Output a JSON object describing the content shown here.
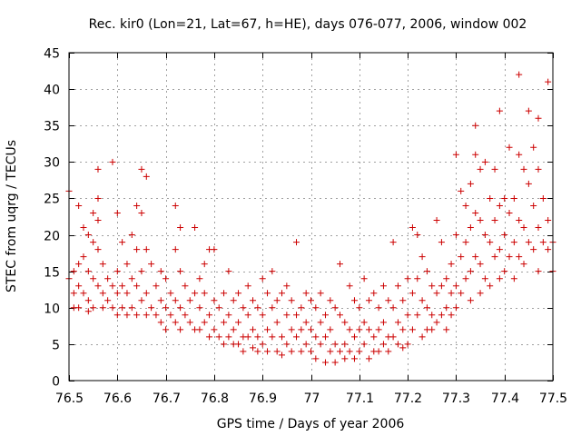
{
  "chart_data": {
    "type": "scatter",
    "title": "Rec. kir0 (Lon=21, Lat=67, h=HE), days 076-077, 2006, window 002",
    "xlabel": "GPS time / Days of year 2006",
    "ylabel": "STEC from uqrg / TECUs",
    "xlim": [
      76.5,
      77.5
    ],
    "ylim": [
      0,
      45
    ],
    "xticks": [
      76.5,
      76.6,
      76.7,
      76.8,
      76.9,
      77,
      77.1,
      77.2,
      77.3,
      77.4,
      77.5
    ],
    "xtick_labels": [
      "76.5",
      "76.6",
      "76.7",
      "76.8",
      "76.9",
      "77",
      "77.1",
      "77.2",
      "77.3",
      "77.4",
      "77.5"
    ],
    "yticks": [
      0,
      5,
      10,
      15,
      20,
      25,
      30,
      35,
      40,
      45
    ],
    "ytick_labels": [
      "0",
      "5",
      "10",
      "15",
      "20",
      "25",
      "30",
      "35",
      "40",
      "45"
    ],
    "grid": true,
    "marker": "plus",
    "color": "#cc0000",
    "points": [
      [
        76.5,
        26
      ],
      [
        76.5,
        14
      ],
      [
        76.51,
        15
      ],
      [
        76.51,
        12
      ],
      [
        76.51,
        10
      ],
      [
        76.52,
        24
      ],
      [
        76.52,
        16
      ],
      [
        76.52,
        13
      ],
      [
        76.52,
        10
      ],
      [
        76.53,
        21
      ],
      [
        76.53,
        17
      ],
      [
        76.53,
        12
      ],
      [
        76.54,
        20
      ],
      [
        76.54,
        15
      ],
      [
        76.54,
        11
      ],
      [
        76.54,
        9.5
      ],
      [
        76.55,
        23
      ],
      [
        76.55,
        19
      ],
      [
        76.55,
        14
      ],
      [
        76.55,
        10
      ],
      [
        76.56,
        25
      ],
      [
        76.56,
        22
      ],
      [
        76.56,
        18
      ],
      [
        76.56,
        13
      ],
      [
        76.56,
        29
      ],
      [
        76.57,
        16
      ],
      [
        76.57,
        12
      ],
      [
        76.57,
        10
      ],
      [
        76.58,
        14
      ],
      [
        76.58,
        11
      ],
      [
        76.59,
        30
      ],
      [
        76.59,
        13
      ],
      [
        76.59,
        10
      ],
      [
        76.6,
        23
      ],
      [
        76.6,
        15
      ],
      [
        76.6,
        12
      ],
      [
        76.6,
        9
      ],
      [
        76.61,
        19
      ],
      [
        76.61,
        13
      ],
      [
        76.61,
        10
      ],
      [
        76.62,
        16
      ],
      [
        76.62,
        12
      ],
      [
        76.62,
        9
      ],
      [
        76.63,
        20
      ],
      [
        76.63,
        14
      ],
      [
        76.63,
        10
      ],
      [
        76.64,
        24
      ],
      [
        76.64,
        18
      ],
      [
        76.64,
        13
      ],
      [
        76.64,
        9
      ],
      [
        76.65,
        29
      ],
      [
        76.65,
        23
      ],
      [
        76.65,
        15
      ],
      [
        76.65,
        11
      ],
      [
        76.66,
        28
      ],
      [
        76.66,
        18
      ],
      [
        76.66,
        12
      ],
      [
        76.66,
        9
      ],
      [
        76.67,
        16
      ],
      [
        76.67,
        10
      ],
      [
        76.68,
        13
      ],
      [
        76.68,
        9
      ],
      [
        76.69,
        15
      ],
      [
        76.69,
        11
      ],
      [
        76.69,
        8
      ],
      [
        76.7,
        14
      ],
      [
        76.7,
        10
      ],
      [
        76.7,
        7
      ],
      [
        76.71,
        12
      ],
      [
        76.71,
        9
      ],
      [
        76.72,
        24
      ],
      [
        76.72,
        18
      ],
      [
        76.72,
        11
      ],
      [
        76.72,
        8
      ],
      [
        76.73,
        21
      ],
      [
        76.73,
        15
      ],
      [
        76.73,
        10
      ],
      [
        76.73,
        7
      ],
      [
        76.74,
        13
      ],
      [
        76.74,
        9
      ],
      [
        76.75,
        11
      ],
      [
        76.75,
        8
      ],
      [
        76.76,
        21
      ],
      [
        76.76,
        12
      ],
      [
        76.76,
        7
      ],
      [
        76.77,
        14
      ],
      [
        76.77,
        10
      ],
      [
        76.77,
        7
      ],
      [
        76.78,
        16
      ],
      [
        76.78,
        12
      ],
      [
        76.78,
        8
      ],
      [
        76.79,
        18
      ],
      [
        76.79,
        9
      ],
      [
        76.79,
        6
      ],
      [
        76.8,
        18
      ],
      [
        76.8,
        11
      ],
      [
        76.8,
        7
      ],
      [
        76.81,
        10
      ],
      [
        76.81,
        6
      ],
      [
        76.82,
        12
      ],
      [
        76.82,
        8
      ],
      [
        76.82,
        5
      ],
      [
        76.83,
        15
      ],
      [
        76.83,
        9
      ],
      [
        76.83,
        6
      ],
      [
        76.84,
        11
      ],
      [
        76.84,
        7
      ],
      [
        76.84,
        5
      ],
      [
        76.85,
        12
      ],
      [
        76.85,
        8
      ],
      [
        76.85,
        5
      ],
      [
        76.86,
        10
      ],
      [
        76.86,
        6
      ],
      [
        76.86,
        4
      ],
      [
        76.87,
        13
      ],
      [
        76.87,
        9
      ],
      [
        76.87,
        6
      ],
      [
        76.88,
        11
      ],
      [
        76.88,
        7
      ],
      [
        76.88,
        4.5
      ],
      [
        76.89,
        10
      ],
      [
        76.89,
        6
      ],
      [
        76.89,
        4
      ],
      [
        76.9,
        14
      ],
      [
        76.9,
        9
      ],
      [
        76.9,
        5
      ],
      [
        76.91,
        12
      ],
      [
        76.91,
        7
      ],
      [
        76.91,
        4
      ],
      [
        76.92,
        15
      ],
      [
        76.92,
        10
      ],
      [
        76.92,
        6
      ],
      [
        76.93,
        11
      ],
      [
        76.93,
        8
      ],
      [
        76.93,
        4
      ],
      [
        76.94,
        12
      ],
      [
        76.94,
        6
      ],
      [
        76.94,
        3.5
      ],
      [
        76.95,
        13
      ],
      [
        76.95,
        9
      ],
      [
        76.95,
        5
      ],
      [
        76.96,
        11
      ],
      [
        76.96,
        7
      ],
      [
        76.96,
        4
      ],
      [
        76.97,
        19
      ],
      [
        76.97,
        9
      ],
      [
        76.97,
        6
      ],
      [
        76.98,
        10
      ],
      [
        76.98,
        7
      ],
      [
        76.98,
        4
      ],
      [
        76.99,
        12
      ],
      [
        76.99,
        8
      ],
      [
        76.99,
        5
      ],
      [
        77,
        11
      ],
      [
        77,
        7
      ],
      [
        77,
        4
      ],
      [
        77.01,
        10
      ],
      [
        77.01,
        6
      ],
      [
        77.01,
        3
      ],
      [
        77.02,
        12
      ],
      [
        77.02,
        8
      ],
      [
        77.02,
        5
      ],
      [
        77.03,
        9
      ],
      [
        77.03,
        6
      ],
      [
        77.03,
        2.5
      ],
      [
        77.04,
        11
      ],
      [
        77.04,
        7
      ],
      [
        77.04,
        4
      ],
      [
        77.05,
        10
      ],
      [
        77.05,
        5
      ],
      [
        77.05,
        2.5
      ],
      [
        77.06,
        16
      ],
      [
        77.06,
        9
      ],
      [
        77.06,
        4
      ],
      [
        77.07,
        8
      ],
      [
        77.07,
        5
      ],
      [
        77.07,
        3
      ],
      [
        77.08,
        13
      ],
      [
        77.08,
        7
      ],
      [
        77.08,
        4
      ],
      [
        77.09,
        11
      ],
      [
        77.09,
        6
      ],
      [
        77.09,
        3
      ],
      [
        77.1,
        10
      ],
      [
        77.1,
        7
      ],
      [
        77.1,
        4
      ],
      [
        77.11,
        14
      ],
      [
        77.11,
        8
      ],
      [
        77.11,
        5
      ],
      [
        77.12,
        11
      ],
      [
        77.12,
        7
      ],
      [
        77.12,
        3
      ],
      [
        77.13,
        12
      ],
      [
        77.13,
        6
      ],
      [
        77.13,
        4
      ],
      [
        77.14,
        10
      ],
      [
        77.14,
        7
      ],
      [
        77.14,
        4
      ],
      [
        77.15,
        13
      ],
      [
        77.15,
        8
      ],
      [
        77.15,
        5
      ],
      [
        77.16,
        11
      ],
      [
        77.16,
        6
      ],
      [
        77.16,
        4
      ],
      [
        77.17,
        19
      ],
      [
        77.17,
        10
      ],
      [
        77.17,
        6
      ],
      [
        77.18,
        13
      ],
      [
        77.18,
        8
      ],
      [
        77.18,
        5
      ],
      [
        77.19,
        11
      ],
      [
        77.19,
        7
      ],
      [
        77.19,
        4.5
      ],
      [
        77.2,
        14
      ],
      [
        77.2,
        9
      ],
      [
        77.2,
        5
      ],
      [
        77.21,
        21
      ],
      [
        77.21,
        12
      ],
      [
        77.21,
        7
      ],
      [
        77.22,
        20
      ],
      [
        77.22,
        14
      ],
      [
        77.22,
        9
      ],
      [
        77.23,
        17
      ],
      [
        77.23,
        11
      ],
      [
        77.23,
        6
      ],
      [
        77.24,
        15
      ],
      [
        77.24,
        10
      ],
      [
        77.24,
        7
      ],
      [
        77.25,
        13
      ],
      [
        77.25,
        9
      ],
      [
        77.25,
        7
      ],
      [
        77.26,
        22
      ],
      [
        77.26,
        12
      ],
      [
        77.26,
        8
      ],
      [
        77.27,
        19
      ],
      [
        77.27,
        13
      ],
      [
        77.27,
        9
      ],
      [
        77.28,
        14
      ],
      [
        77.28,
        10
      ],
      [
        77.28,
        7
      ],
      [
        77.29,
        16
      ],
      [
        77.29,
        12
      ],
      [
        77.29,
        9
      ],
      [
        77.3,
        31
      ],
      [
        77.3,
        20
      ],
      [
        77.3,
        13
      ],
      [
        77.3,
        10
      ],
      [
        77.31,
        26
      ],
      [
        77.31,
        17
      ],
      [
        77.31,
        12
      ],
      [
        77.32,
        24
      ],
      [
        77.32,
        19
      ],
      [
        77.32,
        14
      ],
      [
        77.33,
        27
      ],
      [
        77.33,
        21
      ],
      [
        77.33,
        15
      ],
      [
        77.33,
        11
      ],
      [
        77.34,
        35
      ],
      [
        77.34,
        31
      ],
      [
        77.34,
        23
      ],
      [
        77.34,
        17
      ],
      [
        77.35,
        29
      ],
      [
        77.35,
        22
      ],
      [
        77.35,
        16
      ],
      [
        77.35,
        12
      ],
      [
        77.36,
        30
      ],
      [
        77.36,
        20
      ],
      [
        77.36,
        14
      ],
      [
        77.37,
        25
      ],
      [
        77.37,
        19
      ],
      [
        77.37,
        13
      ],
      [
        77.38,
        29
      ],
      [
        77.38,
        22
      ],
      [
        77.38,
        17
      ],
      [
        77.39,
        37
      ],
      [
        77.39,
        24
      ],
      [
        77.39,
        18
      ],
      [
        77.39,
        14
      ],
      [
        77.4,
        25
      ],
      [
        77.4,
        20
      ],
      [
        77.4,
        15
      ],
      [
        77.41,
        32
      ],
      [
        77.41,
        23
      ],
      [
        77.41,
        17
      ],
      [
        77.42,
        25
      ],
      [
        77.42,
        19
      ],
      [
        77.42,
        14
      ],
      [
        77.43,
        42
      ],
      [
        77.43,
        31
      ],
      [
        77.43,
        22
      ],
      [
        77.43,
        17
      ],
      [
        77.44,
        29
      ],
      [
        77.44,
        21
      ],
      [
        77.44,
        16
      ],
      [
        77.45,
        37
      ],
      [
        77.45,
        27
      ],
      [
        77.45,
        19
      ],
      [
        77.46,
        32
      ],
      [
        77.46,
        24
      ],
      [
        77.46,
        18
      ],
      [
        77.47,
        36
      ],
      [
        77.47,
        29
      ],
      [
        77.47,
        21
      ],
      [
        77.47,
        15
      ],
      [
        77.48,
        25
      ],
      [
        77.48,
        19
      ],
      [
        77.49,
        41
      ],
      [
        77.49,
        22
      ],
      [
        77.49,
        18
      ],
      [
        77.5,
        19
      ],
      [
        77.5,
        15
      ]
    ]
  }
}
